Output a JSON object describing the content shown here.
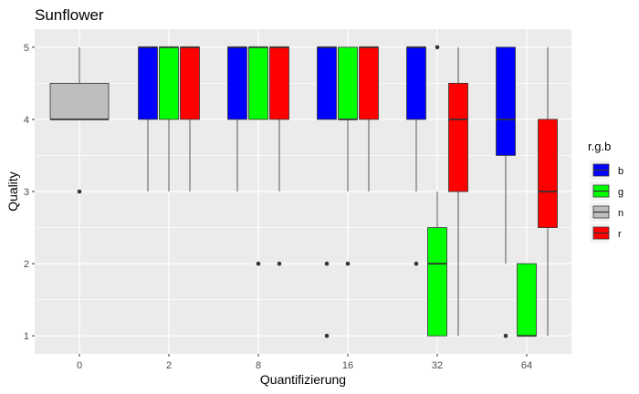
{
  "chart_data": {
    "type": "boxplot",
    "title": "Sunflower",
    "xlabel": "Quantifizierung",
    "ylabel": "Quality",
    "categories": [
      "0",
      "2",
      "8",
      "16",
      "32",
      "64"
    ],
    "yticks": [
      1,
      2,
      3,
      4,
      5
    ],
    "ylim": [
      0.75,
      5.25
    ],
    "grid": true,
    "legend": {
      "title": "r.g.b",
      "position": "right",
      "entries": [
        {
          "key": "b",
          "label": "b",
          "color": "#0000ff"
        },
        {
          "key": "g",
          "label": "g",
          "color": "#00ff00"
        },
        {
          "key": "n",
          "label": "n",
          "color": "#bebebe"
        },
        {
          "key": "r",
          "label": "r",
          "color": "#ff0000"
        }
      ]
    },
    "groups": [
      {
        "category": "0",
        "boxes": [
          {
            "series": "n",
            "q1": 4,
            "median": 4,
            "q3": 4.5,
            "lower": 4,
            "upper": 5,
            "outliers": [
              3
            ]
          }
        ]
      },
      {
        "category": "2",
        "boxes": [
          {
            "series": "b",
            "q1": 4,
            "median": 5,
            "q3": 5,
            "lower": 3,
            "upper": 5,
            "outliers": []
          },
          {
            "series": "g",
            "q1": 4,
            "median": 5,
            "q3": 5,
            "lower": 3,
            "upper": 5,
            "outliers": []
          },
          {
            "series": "r",
            "q1": 4,
            "median": 5,
            "q3": 5,
            "lower": 3,
            "upper": 5,
            "outliers": []
          }
        ]
      },
      {
        "category": "8",
        "boxes": [
          {
            "series": "b",
            "q1": 4,
            "median": 5,
            "q3": 5,
            "lower": 3,
            "upper": 5,
            "outliers": []
          },
          {
            "series": "g",
            "q1": 4,
            "median": 5,
            "q3": 5,
            "lower": 4,
            "upper": 5,
            "outliers": [
              2
            ]
          },
          {
            "series": "r",
            "q1": 4,
            "median": 5,
            "q3": 5,
            "lower": 3,
            "upper": 5,
            "outliers": [
              2
            ]
          }
        ]
      },
      {
        "category": "16",
        "boxes": [
          {
            "series": "b",
            "q1": 4,
            "median": 5,
            "q3": 5,
            "lower": 4,
            "upper": 5,
            "outliers": [
              2,
              1
            ]
          },
          {
            "series": "g",
            "q1": 4,
            "median": 4,
            "q3": 5,
            "lower": 3,
            "upper": 5,
            "outliers": [
              2
            ]
          },
          {
            "series": "r",
            "q1": 4,
            "median": 5,
            "q3": 5,
            "lower": 3,
            "upper": 5,
            "outliers": []
          }
        ]
      },
      {
        "category": "32",
        "boxes": [
          {
            "series": "b",
            "q1": 4,
            "median": 5,
            "q3": 5,
            "lower": 3,
            "upper": 5,
            "outliers": [
              2
            ]
          },
          {
            "series": "g",
            "q1": 1,
            "median": 2,
            "q3": 2.5,
            "lower": 1,
            "upper": 3,
            "outliers": [
              5
            ]
          },
          {
            "series": "r",
            "q1": 3,
            "median": 4,
            "q3": 4.5,
            "lower": 1,
            "upper": 5,
            "outliers": []
          }
        ]
      },
      {
        "category": "64",
        "boxes": [
          {
            "series": "b",
            "q1": 3.5,
            "median": 4,
            "q3": 5,
            "lower": 2,
            "upper": 5,
            "outliers": [
              1
            ]
          },
          {
            "series": "g",
            "q1": 1,
            "median": 1,
            "q3": 2,
            "lower": 1,
            "upper": 2,
            "outliers": []
          },
          {
            "series": "r",
            "q1": 2.5,
            "median": 3,
            "q3": 4,
            "lower": 1,
            "upper": 5,
            "outliers": []
          }
        ]
      }
    ]
  }
}
